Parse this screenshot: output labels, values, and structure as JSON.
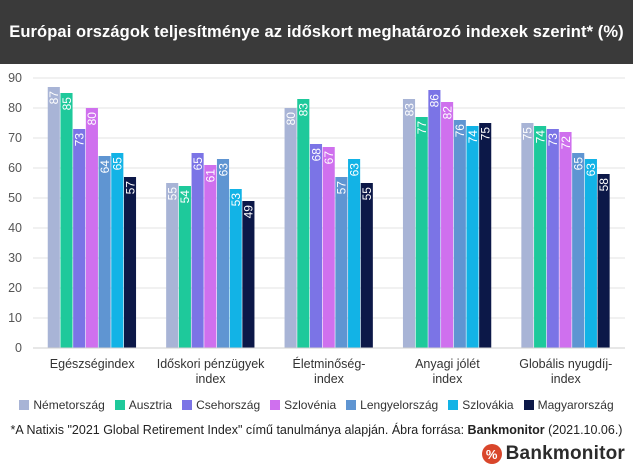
{
  "title": "Európai országok teljesítménye az időskort meghatározó indexek szerint* (%)",
  "footnote": {
    "prefix": "*A Natixis \"2021 Global Retirement Index\" című tanulmánya alapján. Ábra forrása: ",
    "source": "Bankmonitor",
    "suffix": " (2021.10.06.)"
  },
  "brand": {
    "icon_text": "%",
    "text": "Bankmonitor"
  },
  "chart_data": {
    "type": "bar",
    "title": "Európai országok teljesítménye az időskort meghatározó indexek szerint* (%)",
    "categories": [
      [
        "Egészségindex"
      ],
      [
        "Időskori pénzügyek",
        "index"
      ],
      [
        "Életminőség-",
        "index"
      ],
      [
        "Anyagi jólét",
        "index"
      ],
      [
        "Globális nyugdíj-",
        "index"
      ]
    ],
    "ylim": [
      0,
      90
    ],
    "yticks": [
      0,
      10,
      20,
      30,
      40,
      50,
      60,
      70,
      80,
      90
    ],
    "grid": true,
    "legend_position": "bottom",
    "series": [
      {
        "name": "Németország",
        "color": "#a8b4d6",
        "values": [
          87,
          55,
          80,
          83,
          75
        ]
      },
      {
        "name": "Ausztria",
        "color": "#1ec99b",
        "values": [
          85,
          54,
          83,
          77,
          74
        ]
      },
      {
        "name": "Csehország",
        "color": "#7b74e6",
        "values": [
          73,
          65,
          68,
          86,
          73
        ]
      },
      {
        "name": "Szlovénia",
        "color": "#cf70ee",
        "values": [
          80,
          61,
          67,
          82,
          72
        ]
      },
      {
        "name": "Lengyelország",
        "color": "#5f95d2",
        "values": [
          64,
          63,
          57,
          76,
          65
        ]
      },
      {
        "name": "Szlovákia",
        "color": "#12b3e6",
        "values": [
          65,
          53,
          63,
          74,
          63
        ]
      },
      {
        "name": "Magyarország",
        "color": "#0c1848",
        "values": [
          57,
          49,
          55,
          75,
          58
        ]
      }
    ]
  }
}
